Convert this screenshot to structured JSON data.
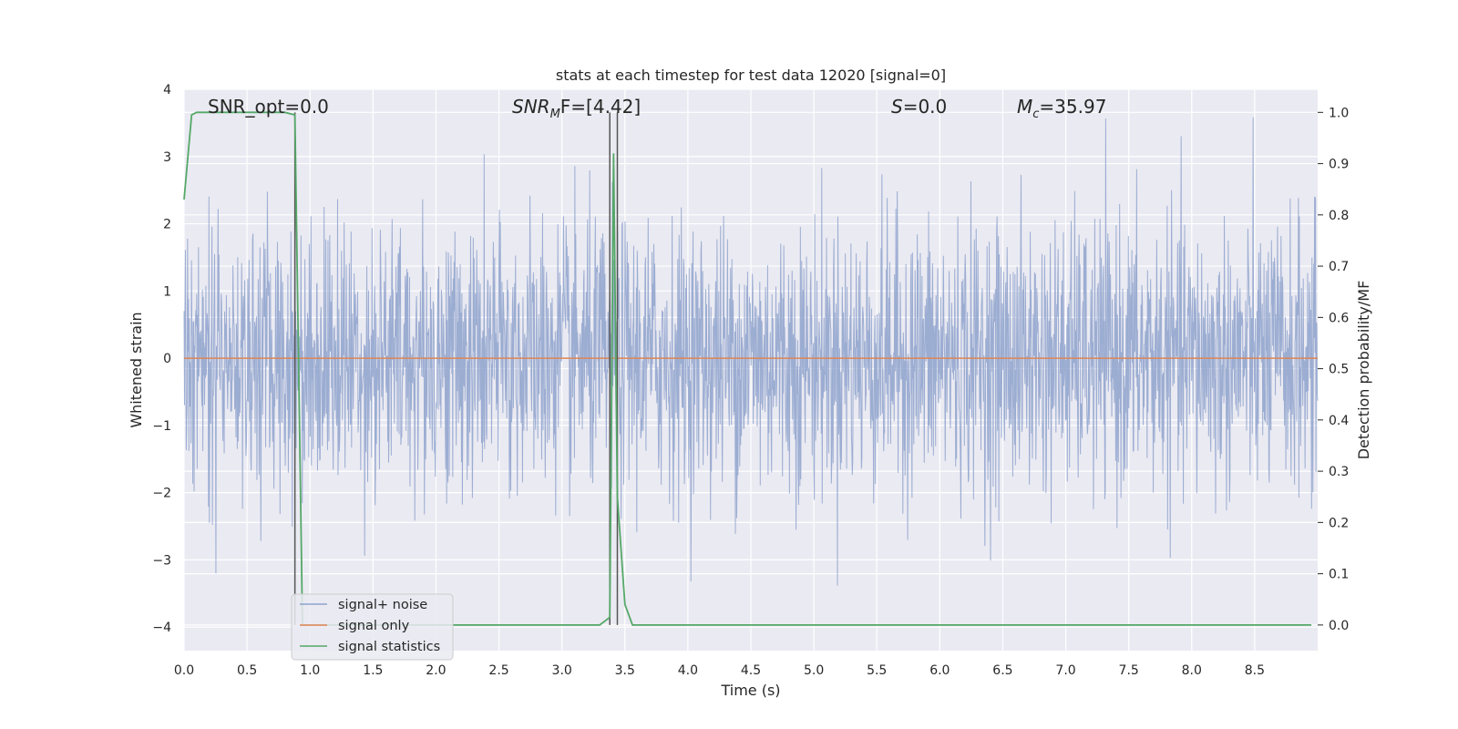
{
  "chart_data": {
    "type": "line",
    "title": "stats at each timestep for test data 12020 [signal=0]",
    "xlabel": "Time (s)",
    "ylabel_left": "Whitened strain",
    "ylabel_right": "Detection probability/MF",
    "xlim": [
      0.0,
      9.0
    ],
    "ylim_left": [
      -4.35,
      4.0
    ],
    "ylim_right": [
      -0.05,
      1.045
    ],
    "x_ticks": [
      0.0,
      0.5,
      1.0,
      1.5,
      2.0,
      2.5,
      3.0,
      3.5,
      4.0,
      4.5,
      5.0,
      5.5,
      6.0,
      6.5,
      7.0,
      7.5,
      8.0,
      8.5
    ],
    "x_tick_labels": [
      "0.0",
      "0.5",
      "1.0",
      "1.5",
      "2.0",
      "2.5",
      "3.0",
      "3.5",
      "4.0",
      "4.5",
      "5.0",
      "5.5",
      "6.0",
      "6.5",
      "7.0",
      "7.5",
      "8.0",
      "8.5"
    ],
    "y_left_ticks": [
      4,
      3,
      2,
      1,
      0,
      -1,
      -2,
      -3,
      -4
    ],
    "y_left_tick_labels": [
      "4",
      "3",
      "2",
      "1",
      "0",
      "−1",
      "−2",
      "−3",
      "−4"
    ],
    "y_right_ticks": [
      1.0,
      0.9,
      0.8,
      0.7,
      0.6,
      0.5,
      0.4,
      0.3,
      0.2,
      0.1,
      0.0
    ],
    "y_right_tick_labels": [
      "1.0",
      "0.9",
      "0.8",
      "0.7",
      "0.6",
      "0.5",
      "0.4",
      "0.3",
      "0.2",
      "0.1",
      "0.0"
    ],
    "grid": true,
    "legend_location": "lower-left",
    "annotations": {
      "snr_opt": "SNR_opt=0.0",
      "snr_mf_main": "SNR",
      "snr_mf_sub": "M",
      "snr_mf_rest": "F=[4.42]",
      "s_main": "S",
      "s_rest": "=0.0",
      "mc_main": "M",
      "mc_sub": "c",
      "mc_rest": "=35.97"
    },
    "vertical_markers_x": [
      0.88,
      3.38,
      3.44
    ],
    "series": [
      {
        "name": "signal+ noise",
        "axis": "left",
        "color": "#8ea2cc",
        "description_range": [
          -2.0,
          2.0
        ],
        "noise_sigma": 1.0,
        "x_range": [
          0.0,
          9.0
        ]
      },
      {
        "name": "signal only",
        "axis": "left",
        "color": "#dd8452",
        "x": [
          0.0,
          9.0
        ],
        "y": [
          0.0,
          0.0
        ]
      },
      {
        "name": "signal statistics",
        "axis": "right",
        "color": "#55a868",
        "x": [
          0.0,
          0.06,
          0.1,
          0.15,
          0.3,
          0.45,
          0.6,
          0.75,
          0.8,
          0.88,
          0.94,
          1.0,
          1.06,
          1.2,
          1.5,
          2.0,
          2.5,
          3.0,
          3.3,
          3.38,
          3.41,
          3.44,
          3.5,
          3.56,
          4.0,
          5.0,
          6.0,
          7.0,
          8.0,
          8.95
        ],
        "y": [
          0.83,
          0.995,
          1.0,
          1.0,
          1.0,
          1.0,
          1.0,
          1.0,
          1.0,
          0.995,
          0.0,
          0.0,
          0.0,
          0.0,
          0.0,
          0.0,
          0.0,
          0.0,
          0.0,
          0.015,
          0.92,
          0.25,
          0.04,
          0.0,
          0.0,
          0.0,
          0.0,
          0.0,
          0.0,
          0.0
        ]
      }
    ]
  },
  "legend": {
    "items": [
      {
        "label": "signal+ noise",
        "color": "#8ea2cc"
      },
      {
        "label": "signal only",
        "color": "#dd8452"
      },
      {
        "label": "signal statistics",
        "color": "#55a868"
      }
    ]
  }
}
